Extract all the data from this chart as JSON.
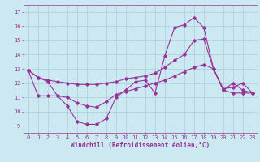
{
  "xlabel": "Windchill (Refroidissement éolien,°C)",
  "background_color": "#cce8f0",
  "grid_color": "#aaccdd",
  "line_color": "#993399",
  "xlim": [
    -0.5,
    23.5
  ],
  "ylim": [
    8.5,
    17.5
  ],
  "yticks": [
    9,
    10,
    11,
    12,
    13,
    14,
    15,
    16,
    17
  ],
  "xticks": [
    0,
    1,
    2,
    3,
    4,
    5,
    6,
    7,
    8,
    9,
    10,
    11,
    12,
    13,
    14,
    15,
    16,
    17,
    18,
    19,
    20,
    21,
    22,
    23
  ],
  "line1_x": [
    0,
    1,
    2,
    3,
    4,
    5,
    6,
    7,
    8,
    9,
    10,
    11,
    12,
    13,
    14,
    15,
    16,
    17,
    18,
    19,
    20,
    21,
    22,
    23
  ],
  "line1_y": [
    12.9,
    12.4,
    12.1,
    11.1,
    10.4,
    9.3,
    9.1,
    9.1,
    9.5,
    11.0,
    11.5,
    12.1,
    12.2,
    11.3,
    13.9,
    15.9,
    16.1,
    16.6,
    15.9,
    13.0,
    11.5,
    12.0,
    11.5,
    11.3
  ],
  "line2_x": [
    0,
    1,
    2,
    3,
    4,
    5,
    6,
    7,
    8,
    9,
    10,
    11,
    12,
    13,
    14,
    15,
    16,
    17,
    18,
    19,
    20,
    21,
    22,
    23
  ],
  "line2_y": [
    12.9,
    11.1,
    11.1,
    11.1,
    11.0,
    10.6,
    10.4,
    10.3,
    10.7,
    11.2,
    11.4,
    11.6,
    11.8,
    12.0,
    12.2,
    12.5,
    12.8,
    13.1,
    13.3,
    13.0,
    11.5,
    11.3,
    11.3,
    11.3
  ],
  "line3_x": [
    0,
    1,
    2,
    3,
    4,
    5,
    6,
    7,
    8,
    9,
    10,
    11,
    12,
    13,
    14,
    15,
    16,
    17,
    18,
    19,
    20,
    21,
    22,
    23
  ],
  "line3_y": [
    12.9,
    12.4,
    12.2,
    12.1,
    12.0,
    11.9,
    11.9,
    11.9,
    12.0,
    12.1,
    12.3,
    12.4,
    12.5,
    12.7,
    13.1,
    13.6,
    14.0,
    15.0,
    15.1,
    13.0,
    11.6,
    11.7,
    12.0,
    11.3
  ],
  "xlabel_fontsize": 5.5,
  "tick_fontsize": 5.0,
  "marker_size": 1.8,
  "line_width": 0.8
}
